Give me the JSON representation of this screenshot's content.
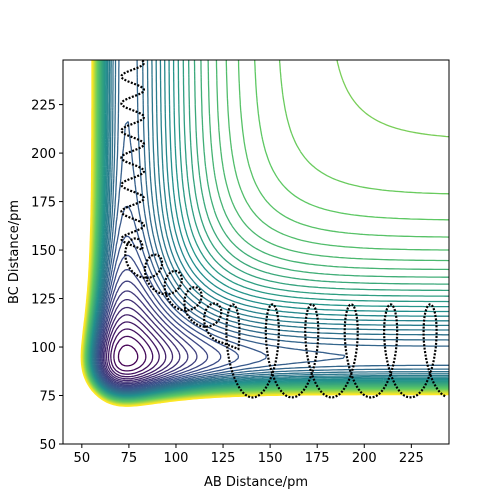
{
  "chart_data": {
    "type": "contour",
    "xlabel": "AB Distance/pm",
    "ylabel": "BC Distance/pm",
    "xlim": [
      40,
      245
    ],
    "ylim": [
      50,
      248
    ],
    "xticks": [
      50,
      75,
      100,
      125,
      150,
      175,
      200,
      225
    ],
    "yticks": [
      50,
      75,
      100,
      125,
      150,
      175,
      200,
      225
    ]
  }
}
